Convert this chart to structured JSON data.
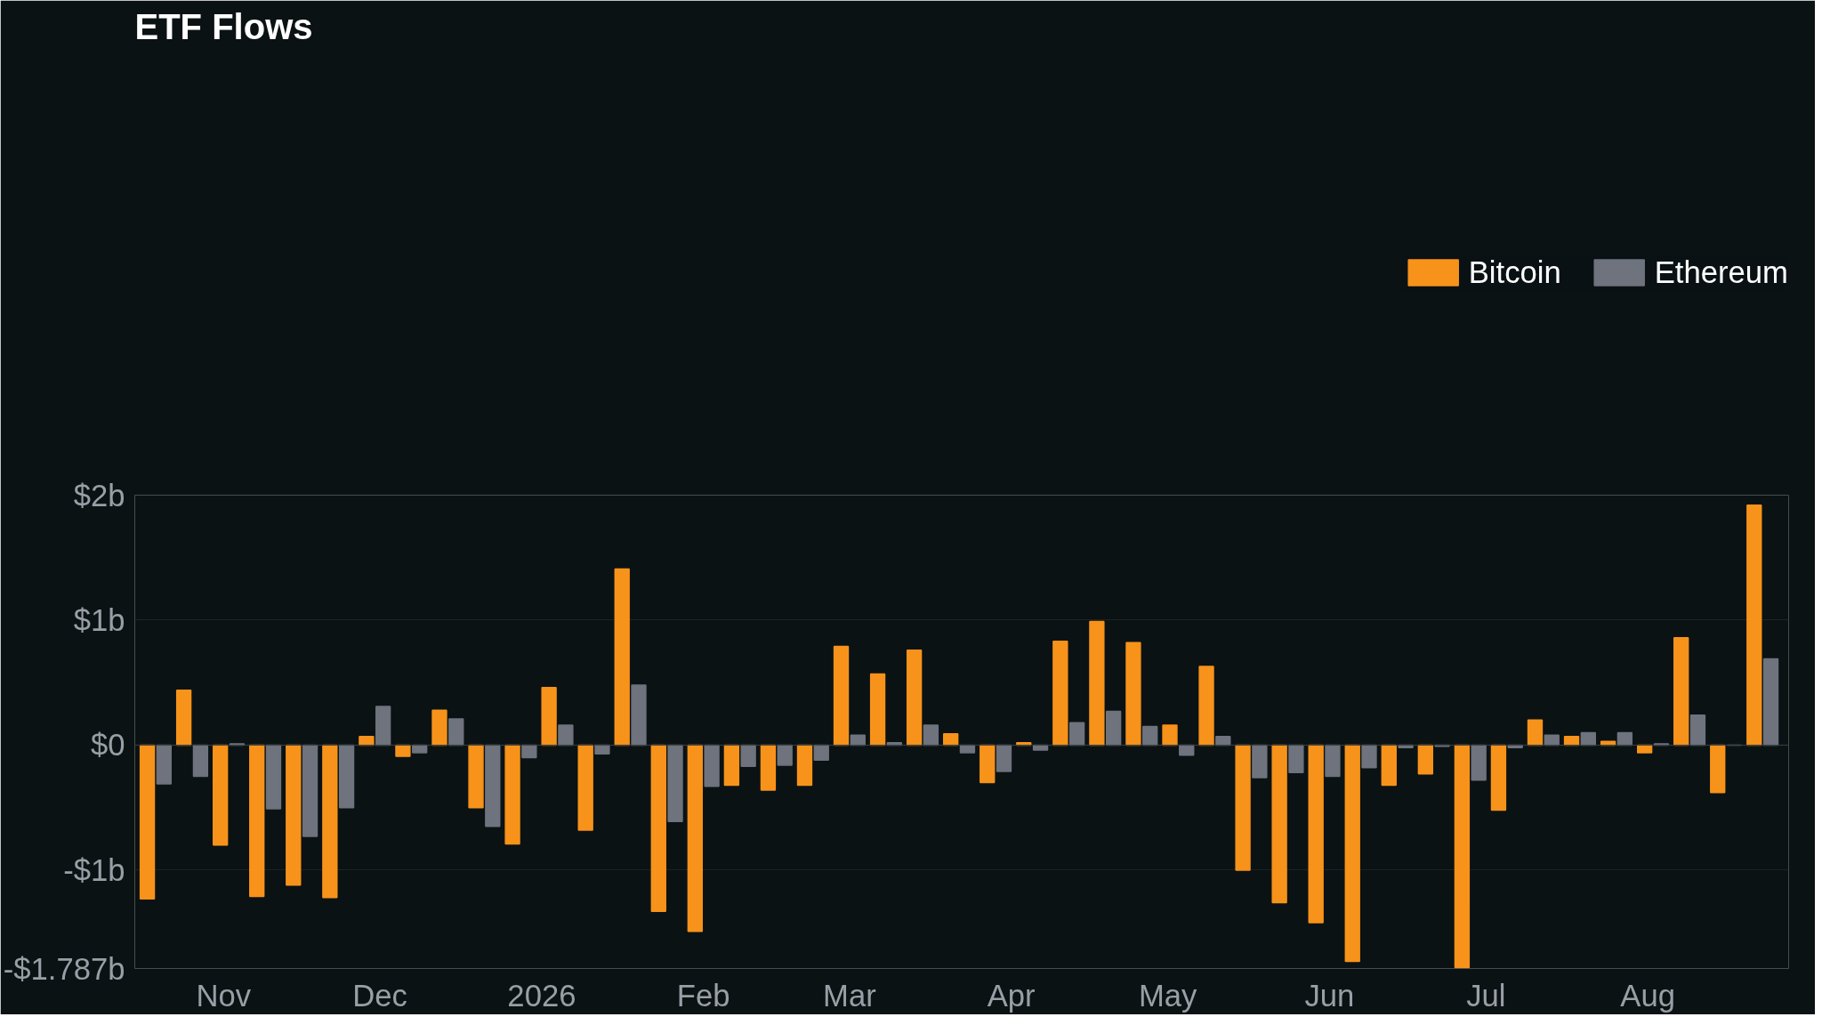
{
  "chart_data": {
    "type": "bar",
    "title": "ETF Flows",
    "x": [
      "2025-10-19",
      "2025-10-26",
      "2025-11-02",
      "2025-11-09",
      "2025-11-16",
      "2025-11-23",
      "2025-11-30",
      "2025-12-07",
      "2025-12-14",
      "2025-12-21",
      "2025-12-28",
      "2026-01-04",
      "2026-01-11",
      "2026-01-18",
      "2026-01-25",
      "2026-02-01",
      "2026-02-08",
      "2026-02-15",
      "2026-02-22",
      "2026-03-01",
      "2026-03-08",
      "2026-03-15",
      "2026-03-22",
      "2026-03-29",
      "2026-04-05",
      "2026-04-12",
      "2026-04-19",
      "2026-04-26",
      "2026-05-03",
      "2026-05-10",
      "2026-05-17",
      "2026-05-24",
      "2026-05-31",
      "2026-06-07",
      "2026-06-14",
      "2026-06-21",
      "2026-06-28",
      "2026-07-05",
      "2026-07-12",
      "2026-07-19",
      "2026-07-26",
      "2026-08-02",
      "2026-08-09",
      "2026-08-16",
      "2026-08-23"
    ],
    "series": [
      {
        "name": "Bitcoin",
        "color": "#f7931a",
        "values": [
          -1.23,
          0.44,
          -0.8,
          -1.21,
          -1.12,
          -1.22,
          0.07,
          -0.09,
          0.28,
          -0.5,
          -0.79,
          0.46,
          -0.68,
          1.41,
          -1.33,
          -1.49,
          -0.32,
          -0.36,
          -0.32,
          0.79,
          0.57,
          0.76,
          0.09,
          -0.3,
          0.02,
          0.83,
          0.99,
          0.82,
          0.16,
          0.63,
          -1.0,
          -1.26,
          -1.42,
          -1.73,
          -0.32,
          -0.23,
          -1.78,
          -0.52,
          0.2,
          0.07,
          0.03,
          -0.06,
          0.86,
          -0.38,
          1.92
        ]
      },
      {
        "name": "Ethereum",
        "color": "#6e737e",
        "values": [
          -0.31,
          -0.25,
          0.01,
          -0.51,
          -0.73,
          -0.5,
          0.31,
          -0.06,
          0.21,
          -0.65,
          -0.1,
          0.16,
          -0.07,
          0.48,
          -0.61,
          -0.33,
          -0.17,
          -0.16,
          -0.12,
          0.08,
          0.02,
          0.16,
          -0.06,
          -0.21,
          -0.04,
          0.18,
          0.27,
          0.15,
          -0.08,
          0.07,
          -0.26,
          -0.22,
          -0.25,
          -0.18,
          -0.02,
          -0.01,
          -0.28,
          -0.02,
          0.08,
          0.1,
          0.1,
          0.01,
          0.24,
          0.0,
          0.69
        ]
      }
    ],
    "xlim": [
      "2025-10-15",
      "2026-08-28"
    ],
    "xticks": [
      {
        "value": "2025-11-01",
        "label": "Nov"
      },
      {
        "value": "2025-12-01",
        "label": "Dec"
      },
      {
        "value": "2026-01-01",
        "label": "2026"
      },
      {
        "value": "2026-02-01",
        "label": "Feb"
      },
      {
        "value": "2026-03-01",
        "label": "Mar"
      },
      {
        "value": "2026-04-01",
        "label": "Apr"
      },
      {
        "value": "2026-05-01",
        "label": "May"
      },
      {
        "value": "2026-06-01",
        "label": "Jun"
      },
      {
        "value": "2026-07-01",
        "label": "Jul"
      },
      {
        "value": "2026-08-01",
        "label": "Aug"
      }
    ],
    "ylim": [
      -1.787,
      2
    ],
    "yticks": [
      {
        "value": -1.787,
        "label": "-$1.787b"
      },
      {
        "value": -1,
        "label": "-$1b"
      },
      {
        "value": 0,
        "label": "$0"
      },
      {
        "value": 1,
        "label": "$1b"
      },
      {
        "value": 2,
        "label": "$2b"
      }
    ],
    "grid": "y",
    "legend": "top right"
  }
}
